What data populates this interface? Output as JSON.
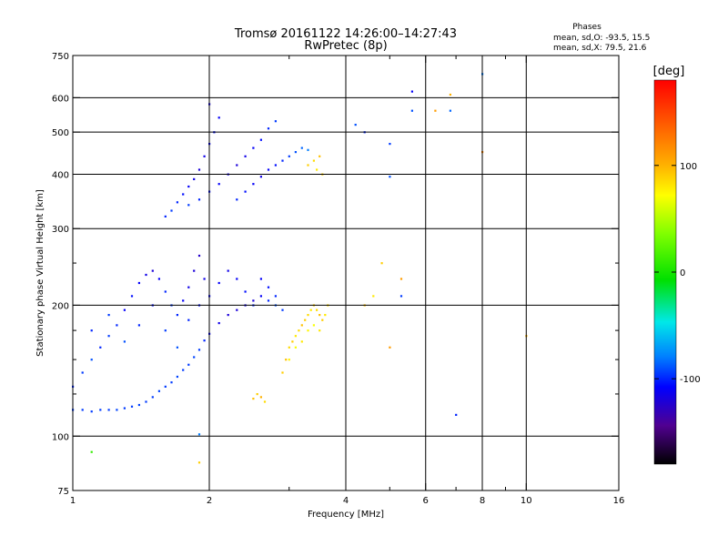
{
  "colors": {
    "background": "#ffffff",
    "axis": "#000000",
    "grid": "#000000"
  },
  "header": {
    "title_line1": "Tromsø 20161122 14:26:00–14:27:43",
    "title_line2": "RwPretec (8p)",
    "phases_title": "Phases",
    "phases_o": "mean, sd,O:  -93.5, 15.5",
    "phases_x": "mean, sd,X:  79.5, 21.6"
  },
  "colorbar": {
    "label": "[deg]",
    "range": [
      -180,
      180
    ],
    "tick_values": [
      100,
      0,
      -100
    ],
    "tick_labels": [
      "100",
      "0",
      "-100"
    ]
  },
  "chart_data": {
    "type": "scatter",
    "title": "Tromsø 20161122 14:26:00–14:27:43",
    "subtitle": "RwPretec (8p)",
    "xlabel": "Frequency [MHz]",
    "ylabel": "Stationary phase Virtual Height [km]",
    "x_scale": "log",
    "y_scale": "log",
    "xlim": [
      1,
      16
    ],
    "ylim": [
      75,
      750
    ],
    "x_ticks": [
      1,
      2,
      4,
      6,
      8,
      10,
      16
    ],
    "x_tick_labels": [
      "1",
      "2",
      "4",
      "6",
      "8",
      "10",
      "16"
    ],
    "x_grid": [
      2,
      4,
      6,
      8,
      10
    ],
    "x_minor": [
      3,
      5,
      7,
      9
    ],
    "y_ticks": [
      75,
      100,
      200,
      300,
      400,
      500,
      600,
      750
    ],
    "y_tick_labels": [
      "75",
      "100",
      "200",
      "300",
      "400",
      "500",
      "600",
      "750"
    ],
    "y_grid": [
      100,
      200,
      300,
      400,
      500,
      600
    ],
    "y_minor": [
      125,
      150,
      175,
      250
    ],
    "grid": true,
    "color_encoding": "phase [deg]",
    "series": [
      {
        "mode": "O",
        "points": [
          [
            1.0,
            115,
            -95
          ],
          [
            1.05,
            115,
            -95
          ],
          [
            1.1,
            114,
            -95
          ],
          [
            1.15,
            115,
            -95
          ],
          [
            1.2,
            115,
            -95
          ],
          [
            1.25,
            115,
            -93
          ],
          [
            1.3,
            116,
            -95
          ],
          [
            1.35,
            117,
            -95
          ],
          [
            1.4,
            118,
            -93
          ],
          [
            1.45,
            120,
            -95
          ],
          [
            1.5,
            123,
            -95
          ],
          [
            1.55,
            127,
            -93
          ],
          [
            1.6,
            130,
            -95
          ],
          [
            1.65,
            133,
            -95
          ],
          [
            1.7,
            137,
            -93
          ],
          [
            1.75,
            142,
            -95
          ],
          [
            1.8,
            146,
            -95
          ],
          [
            1.85,
            152,
            -93
          ],
          [
            1.9,
            158,
            -95
          ],
          [
            1.95,
            166,
            -100
          ],
          [
            2.0,
            172,
            -110
          ],
          [
            2.1,
            182,
            -115
          ],
          [
            2.2,
            190,
            -120
          ],
          [
            2.3,
            195,
            -120
          ],
          [
            2.4,
            200,
            -115
          ],
          [
            2.5,
            205,
            -120
          ],
          [
            2.6,
            210,
            -110
          ],
          [
            2.7,
            205,
            -100
          ],
          [
            2.8,
            200,
            -90
          ],
          [
            1.0,
            130,
            -100
          ],
          [
            1.05,
            140,
            -95
          ],
          [
            1.1,
            150,
            -90
          ],
          [
            1.15,
            160,
            -100
          ],
          [
            1.2,
            170,
            -95
          ],
          [
            1.25,
            180,
            -100
          ],
          [
            1.3,
            195,
            -110
          ],
          [
            1.35,
            210,
            -105
          ],
          [
            1.4,
            225,
            -110
          ],
          [
            1.45,
            235,
            -115
          ],
          [
            1.5,
            240,
            -120
          ],
          [
            1.55,
            230,
            -110
          ],
          [
            1.6,
            215,
            -100
          ],
          [
            1.65,
            200,
            -95
          ],
          [
            1.7,
            190,
            -100
          ],
          [
            1.75,
            205,
            -110
          ],
          [
            1.8,
            220,
            -115
          ],
          [
            1.85,
            240,
            -120
          ],
          [
            1.9,
            260,
            -125
          ],
          [
            1.95,
            230,
            -115
          ],
          [
            2.0,
            210,
            -110
          ],
          [
            1.1,
            175,
            -100
          ],
          [
            1.2,
            190,
            -95
          ],
          [
            1.3,
            165,
            -90
          ],
          [
            1.4,
            180,
            -100
          ],
          [
            1.5,
            200,
            -105
          ],
          [
            1.6,
            175,
            -95
          ],
          [
            1.7,
            160,
            -90
          ],
          [
            1.8,
            185,
            -100
          ],
          [
            1.9,
            200,
            -105
          ],
          [
            2.1,
            225,
            -110
          ],
          [
            2.2,
            240,
            -115
          ],
          [
            2.3,
            230,
            -110
          ],
          [
            2.4,
            215,
            -105
          ],
          [
            2.5,
            200,
            -100
          ],
          [
            2.6,
            230,
            -110
          ],
          [
            2.7,
            220,
            -105
          ],
          [
            2.8,
            210,
            -100
          ],
          [
            2.9,
            195,
            -95
          ],
          [
            1.6,
            320,
            -100
          ],
          [
            1.65,
            330,
            -95
          ],
          [
            1.7,
            345,
            -100
          ],
          [
            1.75,
            360,
            -105
          ],
          [
            1.8,
            375,
            -110
          ],
          [
            1.85,
            390,
            -115
          ],
          [
            1.9,
            410,
            -120
          ],
          [
            1.95,
            440,
            -115
          ],
          [
            2.0,
            470,
            -110
          ],
          [
            2.05,
            500,
            -105
          ],
          [
            2.1,
            540,
            -110
          ],
          [
            2.0,
            580,
            -115
          ],
          [
            1.8,
            340,
            -95
          ],
          [
            1.9,
            350,
            -100
          ],
          [
            2.0,
            365,
            -105
          ],
          [
            2.1,
            380,
            -110
          ],
          [
            2.2,
            400,
            -115
          ],
          [
            2.3,
            420,
            -120
          ],
          [
            2.4,
            440,
            -115
          ],
          [
            2.5,
            460,
            -110
          ],
          [
            2.6,
            480,
            -105
          ],
          [
            2.7,
            510,
            -100
          ],
          [
            2.8,
            530,
            -95
          ],
          [
            2.3,
            350,
            -100
          ],
          [
            2.4,
            365,
            -105
          ],
          [
            2.5,
            380,
            -110
          ],
          [
            2.6,
            395,
            -115
          ],
          [
            2.7,
            410,
            -110
          ],
          [
            2.8,
            420,
            -105
          ],
          [
            2.9,
            430,
            -100
          ],
          [
            3.0,
            440,
            -95
          ],
          [
            3.1,
            450,
            -90
          ],
          [
            3.2,
            460,
            -85
          ],
          [
            3.3,
            455,
            -80
          ]
        ]
      },
      {
        "mode": "X",
        "points": [
          [
            2.5,
            122,
            95
          ],
          [
            2.55,
            125,
            90
          ],
          [
            2.6,
            123,
            100
          ],
          [
            2.65,
            120,
            85
          ],
          [
            2.9,
            140,
            90
          ],
          [
            2.95,
            150,
            95
          ],
          [
            3.0,
            160,
            85
          ],
          [
            3.05,
            165,
            90
          ],
          [
            3.1,
            170,
            80
          ],
          [
            3.15,
            175,
            85
          ],
          [
            3.2,
            180,
            95
          ],
          [
            3.25,
            185,
            90
          ],
          [
            3.3,
            190,
            85
          ],
          [
            3.35,
            195,
            80
          ],
          [
            3.4,
            200,
            90
          ],
          [
            3.45,
            195,
            85
          ],
          [
            3.5,
            190,
            95
          ],
          [
            3.55,
            185,
            90
          ],
          [
            3.6,
            190,
            80
          ],
          [
            3.65,
            200,
            85
          ],
          [
            3.0,
            150,
            75
          ],
          [
            3.1,
            160,
            70
          ],
          [
            3.2,
            165,
            80
          ],
          [
            3.3,
            175,
            75
          ],
          [
            3.4,
            180,
            70
          ],
          [
            3.5,
            175,
            80
          ],
          [
            3.3,
            420,
            90
          ],
          [
            3.4,
            430,
            85
          ],
          [
            3.5,
            440,
            95
          ],
          [
            3.45,
            410,
            80
          ],
          [
            3.55,
            400,
            90
          ],
          [
            5.0,
            160,
            110
          ],
          [
            10.0,
            170,
            100
          ]
        ]
      },
      {
        "mode": "scattered",
        "points": [
          [
            1.1,
            92,
            10
          ],
          [
            1.9,
            87,
            90
          ],
          [
            1.9,
            101,
            -80
          ],
          [
            4.2,
            520,
            -90
          ],
          [
            4.4,
            500,
            -100
          ],
          [
            5.0,
            470,
            -95
          ],
          [
            5.6,
            620,
            -110
          ],
          [
            5.6,
            560,
            -90
          ],
          [
            6.3,
            560,
            110
          ],
          [
            6.8,
            560,
            -85
          ],
          [
            6.8,
            610,
            100
          ],
          [
            8.0,
            680,
            -80
          ],
          [
            8.0,
            450,
            120
          ],
          [
            7.0,
            112,
            -100
          ],
          [
            5.0,
            395,
            -90
          ],
          [
            4.8,
            250,
            90
          ],
          [
            5.3,
            230,
            110
          ],
          [
            4.6,
            210,
            80
          ],
          [
            4.4,
            200,
            95
          ],
          [
            5.3,
            210,
            -95
          ]
        ]
      }
    ]
  }
}
